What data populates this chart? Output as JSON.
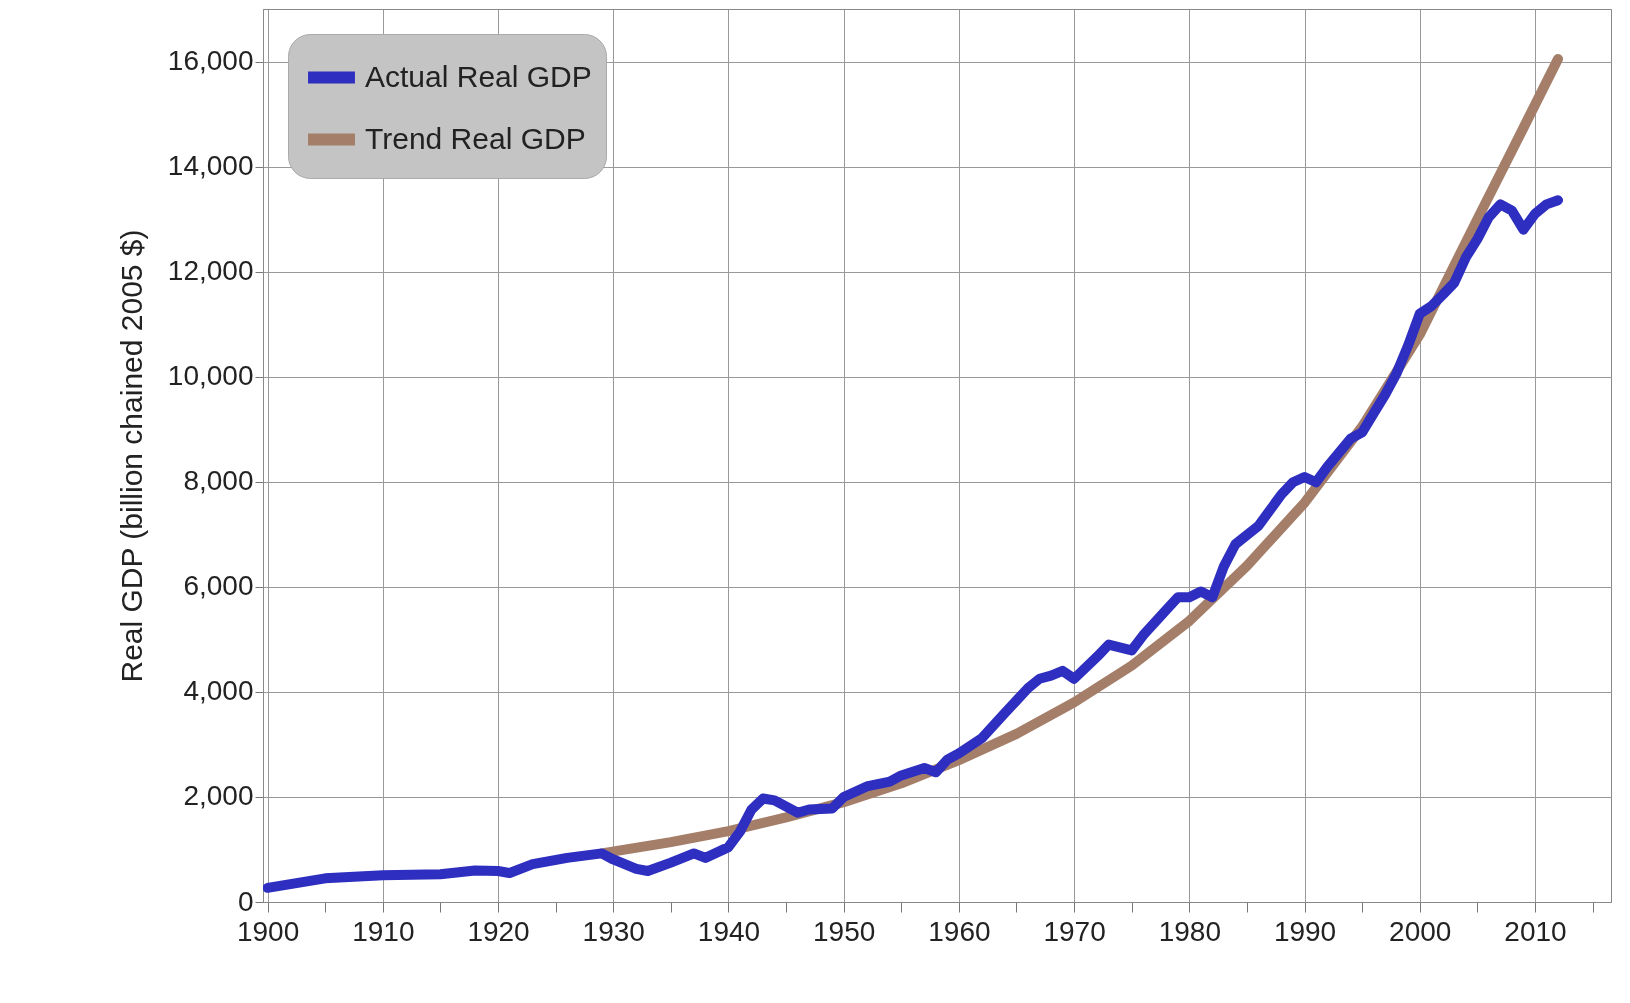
{
  "chart_data": {
    "type": "line",
    "ylabel": "Real GDP (billion chained 2005 $)",
    "xlim": [
      1899.6,
      2016.6
    ],
    "ylim": [
      0,
      17000
    ],
    "xticks": [
      1900,
      {
        "value": 1905,
        "label": null
      },
      1910,
      {
        "value": 1915,
        "label": null
      },
      1920,
      {
        "value": 1925,
        "label": null
      },
      1930,
      {
        "value": 1935,
        "label": null
      },
      1940,
      {
        "value": 1945,
        "label": null
      },
      1950,
      {
        "value": 1955,
        "label": null
      },
      1960,
      {
        "value": 1965,
        "label": null
      },
      1970,
      {
        "value": 1975,
        "label": null
      },
      1980,
      {
        "value": 1985,
        "label": null
      },
      1990,
      {
        "value": 1995,
        "label": null
      },
      2000,
      {
        "value": 2005,
        "label": null
      },
      2010,
      {
        "value": 2015,
        "label": null
      }
    ],
    "yticks": [
      0,
      {
        "value": 2000,
        "label": "2,000"
      },
      {
        "value": 4000,
        "label": "4,000"
      },
      {
        "value": 6000,
        "label": "6,000"
      },
      {
        "value": 8000,
        "label": "8,000"
      },
      {
        "value": 10000,
        "label": "10,000"
      },
      {
        "value": 12000,
        "label": "12,000"
      },
      {
        "value": 14000,
        "label": "14,000"
      },
      {
        "value": 16000,
        "label": "16,000"
      }
    ],
    "grid": true,
    "legend": "top left",
    "line_style": "solid",
    "marker": "none",
    "series": [
      {
        "name": "Actual Real GDP",
        "color": "#2e2ec0",
        "x": [
          1900,
          1905,
          1910,
          1915,
          1918,
          1920,
          1921,
          1923,
          1926,
          1929,
          1930,
          1932,
          1933,
          1935,
          1937,
          1938,
          1940,
          1941,
          1942,
          1943,
          1944,
          1946,
          1947,
          1949,
          1950,
          1952,
          1954,
          1955,
          1957,
          1958,
          1959,
          1960,
          1962,
          1964,
          1966,
          1967,
          1968,
          1969,
          1970,
          1972,
          1973,
          1975,
          1976,
          1978,
          1979,
          1980,
          1981,
          1982,
          1983,
          1984,
          1986,
          1987,
          1988,
          1989,
          1990,
          1991,
          1992,
          1994,
          1995,
          1996,
          1997,
          1998,
          1999,
          2000,
          2001,
          2002,
          2003,
          2004,
          2005,
          2006,
          2007,
          2008,
          2009,
          2010,
          2011,
          2012
        ],
        "values": [
          270,
          450,
          510,
          530,
          600,
          590,
          550,
          720,
          840,
          925,
          810,
          630,
          590,
          750,
          925,
          840,
          1045,
          1340,
          1760,
          1970,
          1935,
          1700,
          1760,
          1780,
          2000,
          2200,
          2290,
          2410,
          2550,
          2470,
          2710,
          2830,
          3120,
          3600,
          4070,
          4250,
          4310,
          4400,
          4250,
          4670,
          4900,
          4790,
          5080,
          5560,
          5800,
          5800,
          5910,
          5800,
          6390,
          6810,
          7160,
          7460,
          7760,
          7990,
          8090,
          7990,
          8290,
          8820,
          8940,
          9300,
          9660,
          10070,
          10600,
          11200,
          11340,
          11560,
          11790,
          12270,
          12620,
          13040,
          13280,
          13160,
          12800,
          13100,
          13280,
          13360
        ]
      },
      {
        "name": "Trend Real GDP",
        "color": "#a47e69",
        "x": [
          1929,
          1935,
          1940,
          1945,
          1950,
          1955,
          1960,
          1965,
          1970,
          1975,
          1980,
          1985,
          1990,
          1995,
          2000,
          2005,
          2008,
          2012
        ],
        "values": [
          925,
          1140,
          1350,
          1610,
          1900,
          2260,
          2700,
          3200,
          3800,
          4500,
          5350,
          6400,
          7600,
          9050,
          10800,
          13000,
          14300,
          16050
        ]
      }
    ]
  }
}
